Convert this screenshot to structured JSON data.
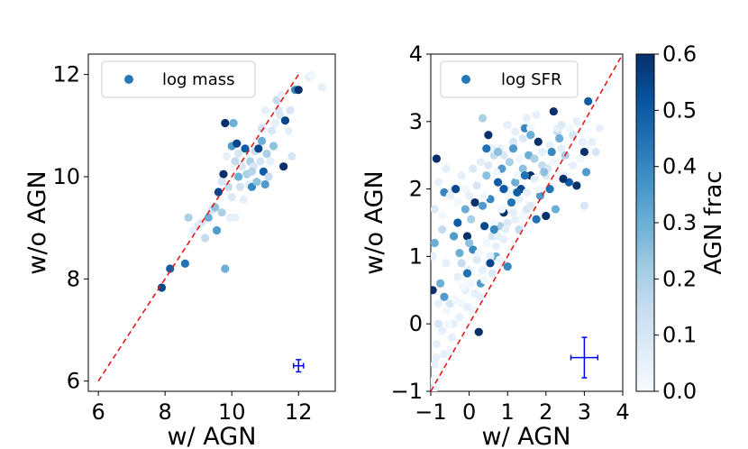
{
  "chart_data": [
    {
      "type": "scatter",
      "legend": "log mass",
      "xlabel": "w/ AGN",
      "ylabel": "w/o AGN",
      "xlim": [
        5.7,
        13.1
      ],
      "ylim": [
        5.8,
        12.4
      ],
      "xticks": [
        "6",
        "8",
        "10",
        "12"
      ],
      "yticks": [
        "6",
        "8",
        "10",
        "12"
      ],
      "one_to_one": [
        6,
        12
      ],
      "error_bar": {
        "x": 12,
        "y": 6.3,
        "xerr": 0.15,
        "yerr": 0.12
      },
      "points": [
        [
          7.9,
          7.83,
          0.55
        ],
        [
          8.15,
          8.2,
          0.5
        ],
        [
          8.6,
          8.3,
          0.45
        ],
        [
          8.7,
          9.2,
          0.2
        ],
        [
          9.1,
          9.1,
          0.1
        ],
        [
          9.2,
          8.8,
          0.15
        ],
        [
          9.3,
          9.2,
          0.3
        ],
        [
          9.4,
          9.35,
          0.12
        ],
        [
          9.5,
          9.4,
          0.25
        ],
        [
          9.55,
          8.95,
          0.35
        ],
        [
          9.6,
          9.7,
          0.55
        ],
        [
          9.7,
          9.3,
          0.2
        ],
        [
          9.75,
          10.05,
          0.6
        ],
        [
          9.8,
          8.2,
          0.3
        ],
        [
          9.8,
          11.05,
          0.6
        ],
        [
          9.9,
          9.8,
          0.15
        ],
        [
          10.0,
          9.6,
          0.08
        ],
        [
          10.0,
          10.6,
          0.35
        ],
        [
          10.05,
          11.05,
          0.3
        ],
        [
          10.1,
          9.2,
          0.05
        ],
        [
          10.15,
          10.65,
          0.55
        ],
        [
          10.2,
          10.0,
          0.3
        ],
        [
          10.25,
          9.8,
          0.12
        ],
        [
          10.3,
          10.2,
          0.1
        ],
        [
          10.4,
          10.55,
          0.5
        ],
        [
          10.45,
          10.05,
          0.2
        ],
        [
          10.5,
          9.85,
          0.05
        ],
        [
          10.55,
          10.3,
          0.2
        ],
        [
          10.6,
          9.8,
          0.4
        ],
        [
          10.65,
          10.2,
          0.1
        ],
        [
          10.7,
          10.5,
          0.15
        ],
        [
          10.75,
          9.9,
          0.25
        ],
        [
          10.8,
          10.55,
          0.55
        ],
        [
          10.85,
          10.3,
          0.1
        ],
        [
          10.9,
          10.7,
          0.3
        ],
        [
          10.95,
          10.1,
          0.5
        ],
        [
          11.0,
          9.85,
          0.35
        ],
        [
          11.05,
          10.45,
          0.2
        ],
        [
          11.1,
          10.0,
          0.15
        ],
        [
          11.15,
          10.3,
          0.05
        ],
        [
          11.2,
          10.9,
          0.1
        ],
        [
          11.25,
          10.6,
          0.25
        ],
        [
          11.3,
          11.05,
          0.05
        ],
        [
          11.35,
          11.5,
          0.15
        ],
        [
          11.45,
          11.2,
          0.08
        ],
        [
          11.5,
          11.6,
          0.05
        ],
        [
          11.55,
          10.2,
          0.6
        ],
        [
          11.6,
          11.1,
          0.55
        ],
        [
          11.7,
          10.9,
          0.05
        ],
        [
          11.75,
          11.3,
          0.1
        ],
        [
          11.8,
          10.4,
          0.1
        ],
        [
          11.9,
          11.7,
          0.4
        ],
        [
          12.0,
          11.7,
          0.6
        ],
        [
          12.3,
          11.95,
          0.05
        ],
        [
          12.4,
          12.0,
          0.02
        ],
        [
          12.7,
          11.75,
          0.05
        ],
        [
          10.35,
          9.55,
          0.05
        ],
        [
          9.0,
          9.05,
          0.08
        ],
        [
          10.9,
          10.95,
          0.12
        ],
        [
          9.85,
          10.4,
          0.05
        ],
        [
          11.0,
          11.3,
          0.05
        ],
        [
          10.2,
          10.45,
          0.1
        ],
        [
          10.6,
          10.1,
          0.18
        ],
        [
          8.85,
          8.95,
          0.05
        ],
        [
          9.95,
          9.2,
          0.05
        ],
        [
          11.4,
          11.3,
          0.1
        ],
        [
          10.1,
          10.3,
          0.15
        ],
        [
          9.7,
          9.9,
          0.1
        ]
      ]
    },
    {
      "type": "scatter",
      "legend": "log SFR",
      "xlabel": "w/ AGN",
      "ylabel": "w/o AGN",
      "xlim": [
        -1,
        4
      ],
      "ylim": [
        -1,
        4
      ],
      "xticks": [
        "−1",
        "0",
        "1",
        "2",
        "3",
        "4"
      ],
      "yticks": [
        "−1",
        "0",
        "1",
        "2",
        "3",
        "4"
      ],
      "one_to_one": [
        -1,
        4
      ],
      "error_bar": {
        "x": 3.0,
        "y": -0.5,
        "xerr": 0.35,
        "yerr": 0.3
      },
      "points": [
        [
          -0.95,
          0.5,
          0.6
        ],
        [
          -0.9,
          1.2,
          0.3
        ],
        [
          -0.85,
          2.45,
          0.6
        ],
        [
          -0.8,
          0.0,
          0.1
        ],
        [
          -0.75,
          0.6,
          0.3
        ],
        [
          -0.7,
          1.4,
          0.15
        ],
        [
          -0.65,
          1.95,
          0.4
        ],
        [
          -0.6,
          0.9,
          0.05
        ],
        [
          -0.5,
          0.3,
          0.1
        ],
        [
          -0.4,
          1.3,
          0.35
        ],
        [
          -0.3,
          1.5,
          0.5
        ],
        [
          -0.2,
          0.9,
          0.15
        ],
        [
          -0.1,
          1.7,
          0.3
        ],
        [
          -0.05,
          1.3,
          0.6
        ],
        [
          0.05,
          1.55,
          0.2
        ],
        [
          0.1,
          1.1,
          0.4
        ],
        [
          0.2,
          2.05,
          0.1
        ],
        [
          0.25,
          -0.12,
          0.6
        ],
        [
          0.3,
          0.6,
          0.35
        ],
        [
          0.35,
          3.05,
          0.2
        ],
        [
          0.4,
          1.45,
          0.55
        ],
        [
          0.45,
          2.2,
          0.25
        ],
        [
          0.5,
          2.8,
          0.6
        ],
        [
          0.55,
          1.85,
          0.4
        ],
        [
          0.6,
          1.3,
          0.1
        ],
        [
          0.65,
          2.5,
          0.15
        ],
        [
          0.7,
          1.0,
          0.3
        ],
        [
          0.75,
          2.1,
          0.5
        ],
        [
          0.8,
          1.45,
          0.2
        ],
        [
          0.85,
          2.3,
          0.35
        ],
        [
          0.9,
          1.65,
          0.6
        ],
        [
          0.95,
          2.0,
          0.1
        ],
        [
          1.0,
          0.85,
          0.4
        ],
        [
          1.05,
          2.4,
          0.2
        ],
        [
          1.1,
          1.8,
          0.45
        ],
        [
          1.15,
          2.7,
          0.1
        ],
        [
          1.2,
          2.1,
          0.3
        ],
        [
          1.3,
          1.4,
          0.15
        ],
        [
          1.35,
          2.0,
          0.55
        ],
        [
          1.4,
          2.3,
          0.25
        ],
        [
          1.45,
          2.9,
          0.4
        ],
        [
          1.5,
          1.7,
          0.1
        ],
        [
          1.55,
          2.5,
          0.3
        ],
        [
          1.6,
          2.2,
          0.6
        ],
        [
          1.7,
          2.45,
          0.2
        ],
        [
          1.75,
          3.1,
          0.05
        ],
        [
          1.8,
          2.7,
          0.6
        ],
        [
          1.85,
          1.9,
          0.35
        ],
        [
          1.9,
          2.35,
          0.15
        ],
        [
          1.95,
          3.55,
          0.2
        ],
        [
          2.0,
          1.6,
          0.6
        ],
        [
          2.05,
          2.3,
          0.1
        ],
        [
          2.1,
          2.0,
          0.45
        ],
        [
          2.2,
          3.15,
          0.6
        ],
        [
          2.25,
          1.7,
          0.3
        ],
        [
          2.3,
          2.85,
          0.15
        ],
        [
          2.4,
          2.6,
          0.05
        ],
        [
          2.5,
          2.5,
          0.2
        ],
        [
          2.6,
          2.1,
          0.5
        ],
        [
          2.7,
          2.8,
          0.1
        ],
        [
          2.8,
          2.05,
          0.6
        ],
        [
          2.95,
          2.7,
          0.05
        ],
        [
          3.0,
          2.55,
          0.6
        ],
        [
          3.1,
          3.3,
          0.5
        ],
        [
          3.2,
          2.7,
          0.05
        ],
        [
          3.3,
          2.55,
          0.1
        ],
        [
          3.4,
          2.9,
          0.05
        ],
        [
          3.6,
          3.5,
          0.02
        ],
        [
          -0.95,
          -0.85,
          0.02
        ],
        [
          -0.9,
          -0.6,
          0.05
        ],
        [
          -0.85,
          -0.3,
          0.05
        ],
        [
          -0.8,
          0.3,
          0.05
        ],
        [
          -0.7,
          -0.1,
          0.05
        ],
        [
          -0.6,
          0.2,
          0.02
        ],
        [
          -0.5,
          -0.4,
          0.02
        ],
        [
          -0.4,
          0.0,
          0.05
        ],
        [
          -0.3,
          0.7,
          0.05
        ],
        [
          -0.2,
          0.3,
          0.02
        ],
        [
          -0.1,
          0.5,
          0.05
        ],
        [
          0.0,
          0.8,
          0.05
        ],
        [
          0.1,
          0.2,
          0.02
        ],
        [
          0.2,
          0.95,
          0.08
        ],
        [
          0.3,
          0.4,
          0.05
        ],
        [
          0.4,
          0.65,
          0.02
        ],
        [
          0.5,
          0.9,
          0.05
        ],
        [
          0.6,
          0.75,
          0.08
        ],
        [
          0.7,
          1.15,
          0.05
        ],
        [
          0.8,
          0.95,
          0.02
        ],
        [
          0.9,
          1.25,
          0.05
        ],
        [
          1.0,
          1.5,
          0.08
        ],
        [
          1.1,
          1.1,
          0.02
        ],
        [
          1.2,
          1.55,
          0.05
        ],
        [
          1.3,
          1.85,
          0.05
        ],
        [
          1.4,
          1.6,
          0.02
        ],
        [
          1.5,
          1.95,
          0.05
        ],
        [
          1.6,
          1.75,
          0.08
        ],
        [
          1.7,
          2.15,
          0.05
        ],
        [
          1.8,
          2.0,
          0.02
        ],
        [
          1.9,
          2.55,
          0.05
        ],
        [
          2.0,
          2.2,
          0.08
        ],
        [
          2.1,
          2.65,
          0.05
        ],
        [
          2.2,
          2.4,
          0.02
        ],
        [
          2.3,
          2.9,
          0.05
        ],
        [
          2.4,
          2.95,
          0.08
        ],
        [
          2.5,
          2.2,
          0.05
        ],
        [
          2.6,
          2.9,
          0.02
        ],
        [
          2.7,
          2.35,
          0.05
        ],
        [
          2.8,
          3.0,
          0.05
        ],
        [
          2.9,
          2.45,
          0.02
        ],
        [
          3.0,
          1.75,
          0.1
        ],
        [
          -0.95,
          1.0,
          0.05
        ],
        [
          -0.9,
          1.7,
          0.08
        ],
        [
          -0.8,
          2.1,
          0.05
        ],
        [
          -0.7,
          1.6,
          0.02
        ],
        [
          -0.6,
          2.3,
          0.05
        ],
        [
          -0.5,
          1.9,
          0.05
        ],
        [
          -0.4,
          2.0,
          0.08
        ],
        [
          -0.3,
          1.8,
          0.02
        ],
        [
          -0.2,
          2.2,
          0.05
        ],
        [
          -0.1,
          2.0,
          0.02
        ],
        [
          0.0,
          1.9,
          0.05
        ],
        [
          0.1,
          2.3,
          0.08
        ],
        [
          0.2,
          1.75,
          0.02
        ],
        [
          0.3,
          2.4,
          0.05
        ],
        [
          0.4,
          1.9,
          0.02
        ],
        [
          0.5,
          2.35,
          0.08
        ],
        [
          0.6,
          2.6,
          0.05
        ],
        [
          0.7,
          2.25,
          0.02
        ],
        [
          0.8,
          2.6,
          0.05
        ],
        [
          0.9,
          2.5,
          0.08
        ],
        [
          1.0,
          2.95,
          0.05
        ],
        [
          1.1,
          2.6,
          0.02
        ],
        [
          1.2,
          2.85,
          0.05
        ],
        [
          1.3,
          2.45,
          0.02
        ],
        [
          1.4,
          2.75,
          0.08
        ],
        [
          1.5,
          3.05,
          0.05
        ],
        [
          1.6,
          2.9,
          0.02
        ],
        [
          -0.9,
          -0.95,
          0.02
        ],
        [
          -0.85,
          -0.5,
          0.05
        ],
        [
          -0.75,
          -0.8,
          0.02
        ],
        [
          -0.65,
          -0.45,
          0.05
        ],
        [
          -0.55,
          0.0,
          0.02
        ],
        [
          -0.45,
          -0.2,
          0.05
        ],
        [
          -0.35,
          0.35,
          0.02
        ],
        [
          -0.25,
          0.1,
          0.05
        ],
        [
          -0.15,
          0.55,
          0.02
        ],
        [
          -0.05,
          0.25,
          0.05
        ],
        [
          0.05,
          0.6,
          0.02
        ],
        [
          0.15,
          0.45,
          0.05
        ],
        [
          0.25,
          1.05,
          0.02
        ],
        [
          0.35,
          0.8,
          0.05
        ],
        [
          0.45,
          1.2,
          0.02
        ],
        [
          0.55,
          1.0,
          0.05
        ],
        [
          0.65,
          1.5,
          0.02
        ],
        [
          0.75,
          1.3,
          0.05
        ],
        [
          0.85,
          1.7,
          0.02
        ],
        [
          0.95,
          1.4,
          0.05
        ],
        [
          1.05,
          1.95,
          0.02
        ],
        [
          1.15,
          1.65,
          0.05
        ],
        [
          1.25,
          2.2,
          0.02
        ],
        [
          0.15,
          1.8,
          0.6
        ],
        [
          0.55,
          0.9,
          0.55
        ],
        [
          -0.05,
          0.75,
          0.45
        ],
        [
          1.25,
          1.95,
          0.5
        ],
        [
          0.65,
          1.4,
          0.4
        ],
        [
          2.45,
          2.15,
          0.6
        ],
        [
          1.15,
          2.6,
          0.35
        ],
        [
          -0.65,
          0.4,
          0.35
        ],
        [
          0.0,
          1.2,
          0.25
        ],
        [
          0.75,
          2.55,
          0.25
        ],
        [
          1.6,
          2.8,
          0.3
        ],
        [
          2.15,
          2.55,
          0.4
        ],
        [
          1.95,
          2.25,
          0.25
        ],
        [
          0.35,
          1.75,
          0.35
        ],
        [
          1.75,
          1.55,
          0.45
        ],
        [
          -0.25,
          1.05,
          0.3
        ],
        [
          0.9,
          2.0,
          0.5
        ],
        [
          3.05,
          2.25,
          0.35
        ],
        [
          2.35,
          2.75,
          0.3
        ],
        [
          1.45,
          2.2,
          0.45
        ],
        [
          -0.35,
          2.0,
          0.55
        ],
        [
          0.45,
          2.6,
          0.45
        ]
      ]
    }
  ],
  "colorbar": {
    "label": "AGN frac",
    "min": 0.0,
    "max": 0.6,
    "ticks": [
      "0.0",
      "0.1",
      "0.2",
      "0.3",
      "0.4",
      "0.5",
      "0.6"
    ],
    "colors": [
      "#f7fbff",
      "#deebf7",
      "#c6dbef",
      "#9ecae1",
      "#6baed6",
      "#4292c6",
      "#2171b5",
      "#08519c",
      "#08306b"
    ]
  },
  "styles": {
    "ref_line_color": "#e41a1c",
    "error_bar_color": "#0000ff",
    "legend_marker_color": "#2878b5"
  }
}
